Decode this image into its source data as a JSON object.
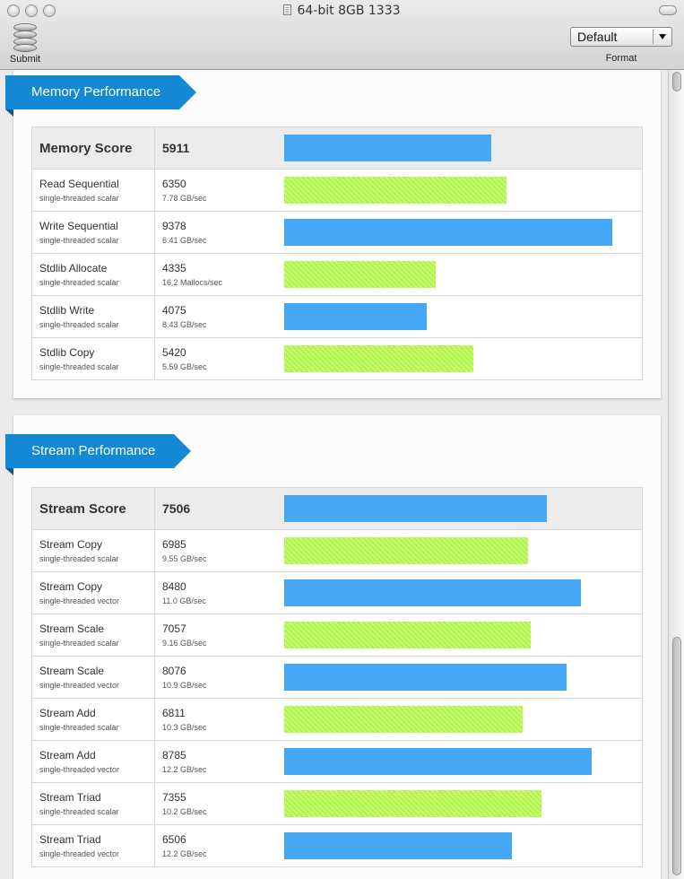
{
  "window": {
    "title": "64-bit 8GB 1333"
  },
  "toolbar": {
    "submit_label": "Submit",
    "format_value": "Default",
    "format_label": "Format"
  },
  "colors": {
    "blue": "#45a8f7",
    "green": "#c5fc6c",
    "ribbon": "#1489d3"
  },
  "max_score": 10000,
  "memory": {
    "title": "Memory Performance",
    "score": {
      "label": "Memory Score",
      "value": "5911",
      "fill": 0.5911
    },
    "rows": [
      {
        "name": "Read Sequential",
        "sub": "single-threaded scalar",
        "score": "6350",
        "rate": "7.78 GB/sec",
        "fill": 0.635,
        "color": "green"
      },
      {
        "name": "Write Sequential",
        "sub": "single-threaded scalar",
        "score": "9378",
        "rate": "6.41 GB/sec",
        "fill": 0.9378,
        "color": "blue"
      },
      {
        "name": "Stdlib Allocate",
        "sub": "single-threaded scalar",
        "score": "4335",
        "rate": "16.2 Mallocs/sec",
        "fill": 0.4335,
        "color": "green"
      },
      {
        "name": "Stdlib Write",
        "sub": "single-threaded scalar",
        "score": "4075",
        "rate": "8.43 GB/sec",
        "fill": 0.4075,
        "color": "blue"
      },
      {
        "name": "Stdlib Copy",
        "sub": "single-threaded scalar",
        "score": "5420",
        "rate": "5.59 GB/sec",
        "fill": 0.542,
        "color": "green"
      }
    ]
  },
  "stream": {
    "title": "Stream Performance",
    "score": {
      "label": "Stream Score",
      "value": "7506",
      "fill": 0.7506
    },
    "rows": [
      {
        "name": "Stream Copy",
        "sub": "single-threaded scalar",
        "score": "6985",
        "rate": "9.55 GB/sec",
        "fill": 0.6985,
        "color": "green"
      },
      {
        "name": "Stream Copy",
        "sub": "single-threaded vector",
        "score": "8480",
        "rate": "11.0 GB/sec",
        "fill": 0.848,
        "color": "blue"
      },
      {
        "name": "Stream Scale",
        "sub": "single-threaded scalar",
        "score": "7057",
        "rate": "9.16 GB/sec",
        "fill": 0.7057,
        "color": "green"
      },
      {
        "name": "Stream Scale",
        "sub": "single-threaded vector",
        "score": "8076",
        "rate": "10.9 GB/sec",
        "fill": 0.8076,
        "color": "blue"
      },
      {
        "name": "Stream Add",
        "sub": "single-threaded scalar",
        "score": "6811",
        "rate": "10.3 GB/sec",
        "fill": 0.6811,
        "color": "green"
      },
      {
        "name": "Stream Add",
        "sub": "single-threaded vector",
        "score": "8785",
        "rate": "12.2 GB/sec",
        "fill": 0.8785,
        "color": "blue"
      },
      {
        "name": "Stream Triad",
        "sub": "single-threaded scalar",
        "score": "7355",
        "rate": "10.2 GB/sec",
        "fill": 0.7355,
        "color": "green"
      },
      {
        "name": "Stream Triad",
        "sub": "single-threaded vector",
        "score": "6506",
        "rate": "12.2 GB/sec",
        "fill": 0.6506,
        "color": "blue"
      }
    ]
  }
}
